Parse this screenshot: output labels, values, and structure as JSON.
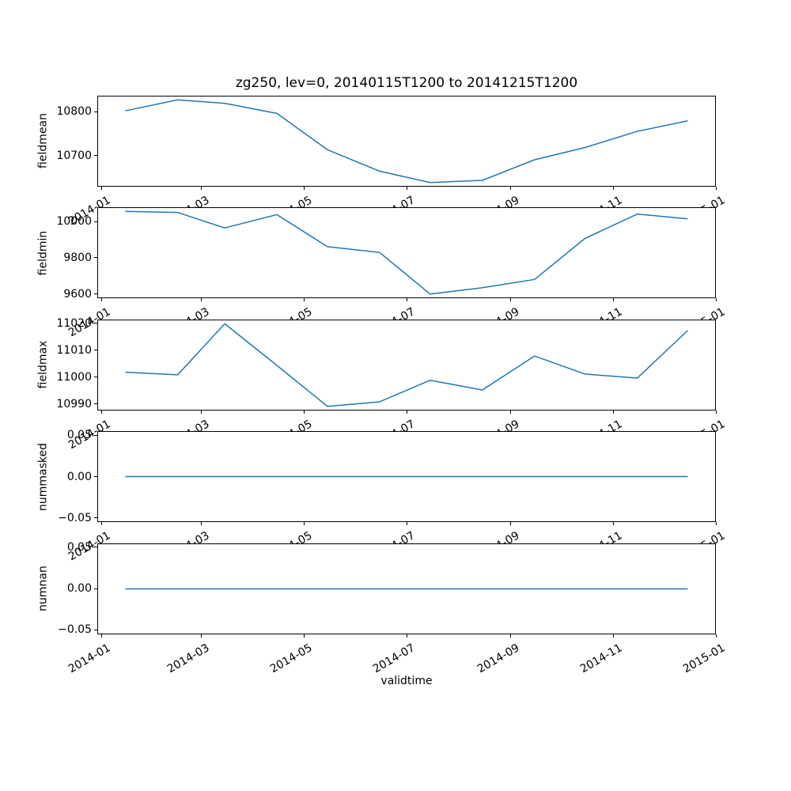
{
  "title": "zg250, lev=0, 20140115T1200 to 20141215T1200",
  "xlabel": "validtime",
  "colors": {
    "line": "#1f77b4",
    "text": "#000000",
    "spine": "#000000",
    "background": "#ffffff"
  },
  "chart_data": {
    "type": "line",
    "title": "zg250, lev=0, 20140115T1200 to 20141215T1200",
    "xlabel": "validtime",
    "grid": false,
    "legend": "none",
    "line_color": "#1f77b4",
    "x": [
      "2014-01-15",
      "2014-02-15",
      "2014-03-15",
      "2014-04-15",
      "2014-05-15",
      "2014-06-15",
      "2014-07-15",
      "2014-08-15",
      "2014-09-15",
      "2014-10-15",
      "2014-11-15",
      "2014-12-15"
    ],
    "x_days": [
      14,
      45,
      73,
      104,
      134,
      165,
      195,
      226,
      257,
      287,
      318,
      348
    ],
    "xlim_days": [
      -2.7,
      364.7
    ],
    "x_tick_labels": [
      "2014-01",
      "2014-03",
      "2014-05",
      "2014-07",
      "2014-09",
      "2014-11",
      "2015-01"
    ],
    "x_tick_days": [
      0,
      59,
      120,
      181,
      243,
      304,
      365
    ],
    "subplots": [
      {
        "ylabel": "fieldmean",
        "values": [
          10803,
          10828,
          10820,
          10797,
          10714,
          10665,
          10639,
          10644,
          10691,
          10719,
          10756,
          10780
        ],
        "ylim": [
          10629.55,
          10837.45
        ],
        "yticks": [
          10700,
          10800
        ],
        "ytick_labels": [
          "10700",
          "10800"
        ]
      },
      {
        "ylabel": "fieldmin",
        "values": [
          10058,
          10052,
          9966,
          10040,
          9862,
          9830,
          9599,
          9634,
          9680,
          9908,
          10043,
          10017
        ],
        "ylim": [
          9576.05,
          10080.95
        ],
        "yticks": [
          9600,
          9800,
          10000
        ],
        "ytick_labels": [
          "9600",
          "9800",
          "10000"
        ]
      },
      {
        "ylabel": "fieldmax",
        "values": [
          11002,
          11001,
          11020,
          11004.5,
          10989.3,
          10991,
          10999,
          10995.4,
          11008,
          11001.3,
          10999.8,
          11017.5
        ],
        "ylim": [
          10987.765,
          11021.535
        ],
        "yticks": [
          10990,
          11000,
          11010,
          11020
        ],
        "ytick_labels": [
          "10990",
          "11000",
          "11010",
          "11020"
        ]
      },
      {
        "ylabel": "nummasked",
        "values": [
          0,
          0,
          0,
          0,
          0,
          0,
          0,
          0,
          0,
          0,
          0,
          0
        ],
        "ylim": [
          -0.055,
          0.055
        ],
        "yticks": [
          -0.05,
          0,
          0.05
        ],
        "ytick_labels": [
          "−0.05",
          "0.00",
          "0.05"
        ]
      },
      {
        "ylabel": "numnan",
        "values": [
          0,
          0,
          0,
          0,
          0,
          0,
          0,
          0,
          0,
          0,
          0,
          0
        ],
        "ylim": [
          -0.055,
          0.055
        ],
        "yticks": [
          -0.05,
          0,
          0.05
        ],
        "ytick_labels": [
          "−0.05",
          "0.00",
          "0.05"
        ]
      }
    ]
  }
}
